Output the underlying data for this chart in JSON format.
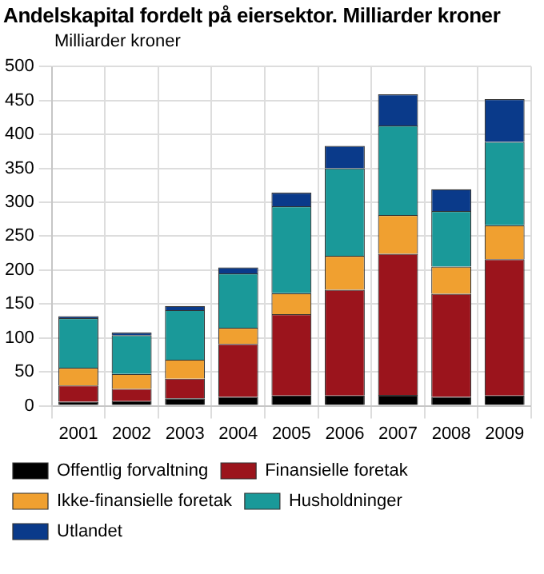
{
  "chart_data": {
    "type": "bar",
    "title": "Andelskapital fordelt på eiersektor. Milliarder kroner",
    "ylabel": "Milliarder kroner",
    "categories": [
      "2001",
      "2002",
      "2003",
      "2004",
      "2005",
      "2006",
      "2007",
      "2008",
      "2009"
    ],
    "stacked": true,
    "series": [
      {
        "name": "Offentlig forvaltning",
        "color": "#000000",
        "values": [
          6,
          7,
          11,
          13,
          15,
          15,
          16,
          13,
          15
        ]
      },
      {
        "name": "Finansielle foretak",
        "color": "#9b141c",
        "values": [
          24,
          18,
          29,
          78,
          120,
          156,
          208,
          152,
          201
        ]
      },
      {
        "name": "Ikke-finansielle foretak",
        "color": "#f0a030",
        "values": [
          26,
          22,
          28,
          24,
          31,
          50,
          57,
          40,
          50
        ]
      },
      {
        "name": "Husholdninger",
        "color": "#1a9999",
        "values": [
          73,
          57,
          73,
          80,
          128,
          129,
          132,
          82,
          123
        ]
      },
      {
        "name": "Utlandet",
        "color": "#0a3a8a",
        "values": [
          3,
          4,
          6,
          9,
          20,
          33,
          46,
          32,
          63
        ]
      }
    ],
    "ylim": [
      0,
      500
    ],
    "yticks": [
      0,
      50,
      100,
      150,
      200,
      250,
      300,
      350,
      400,
      450,
      500
    ],
    "grid": true,
    "legend": "bottom"
  }
}
